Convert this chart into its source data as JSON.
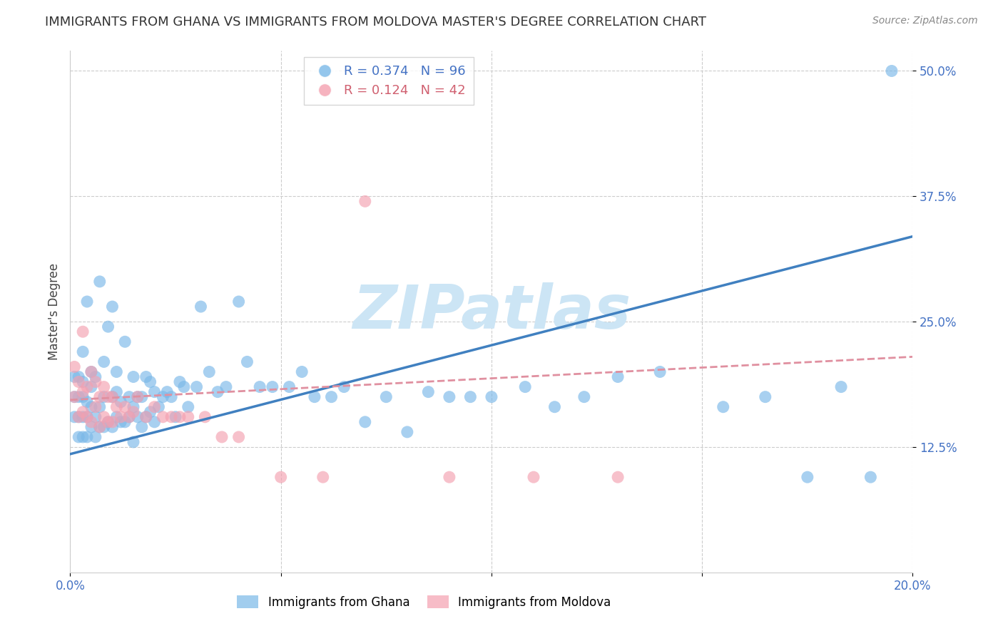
{
  "title": "IMMIGRANTS FROM GHANA VS IMMIGRANTS FROM MOLDOVA MASTER'S DEGREE CORRELATION CHART",
  "source": "Source: ZipAtlas.com",
  "ylabel": "Master's Degree",
  "legend_label_1": "Immigrants from Ghana",
  "legend_label_2": "Immigrants from Moldova",
  "R1": 0.374,
  "N1": 96,
  "R2": 0.124,
  "N2": 42,
  "color1": "#7ab8e8",
  "color2": "#f4a0b0",
  "trendline1_color": "#4080c0",
  "trendline2_color": "#e090a0",
  "xlim": [
    0.0,
    0.2
  ],
  "ylim": [
    0.0,
    0.52
  ],
  "yticks": [
    0.125,
    0.25,
    0.375,
    0.5
  ],
  "yticklabels": [
    "12.5%",
    "25.0%",
    "37.5%",
    "50.0%"
  ],
  "ghana_x": [
    0.001,
    0.001,
    0.001,
    0.002,
    0.002,
    0.002,
    0.002,
    0.003,
    0.003,
    0.003,
    0.003,
    0.003,
    0.004,
    0.004,
    0.004,
    0.004,
    0.005,
    0.005,
    0.005,
    0.005,
    0.006,
    0.006,
    0.006,
    0.007,
    0.007,
    0.007,
    0.008,
    0.008,
    0.008,
    0.009,
    0.009,
    0.01,
    0.01,
    0.01,
    0.011,
    0.011,
    0.011,
    0.012,
    0.012,
    0.013,
    0.013,
    0.014,
    0.014,
    0.015,
    0.015,
    0.015,
    0.016,
    0.016,
    0.017,
    0.017,
    0.018,
    0.018,
    0.019,
    0.019,
    0.02,
    0.02,
    0.021,
    0.022,
    0.023,
    0.024,
    0.025,
    0.026,
    0.027,
    0.028,
    0.03,
    0.031,
    0.033,
    0.035,
    0.037,
    0.04,
    0.042,
    0.045,
    0.048,
    0.052,
    0.055,
    0.058,
    0.062,
    0.065,
    0.07,
    0.075,
    0.08,
    0.085,
    0.09,
    0.095,
    0.1,
    0.108,
    0.115,
    0.122,
    0.13,
    0.14,
    0.155,
    0.165,
    0.175,
    0.183,
    0.19,
    0.195
  ],
  "ghana_y": [
    0.155,
    0.175,
    0.195,
    0.135,
    0.155,
    0.175,
    0.195,
    0.135,
    0.155,
    0.175,
    0.19,
    0.22,
    0.135,
    0.155,
    0.17,
    0.27,
    0.145,
    0.165,
    0.185,
    0.2,
    0.135,
    0.155,
    0.195,
    0.145,
    0.165,
    0.29,
    0.145,
    0.175,
    0.21,
    0.15,
    0.245,
    0.145,
    0.175,
    0.265,
    0.155,
    0.18,
    0.2,
    0.15,
    0.17,
    0.15,
    0.23,
    0.155,
    0.175,
    0.13,
    0.165,
    0.195,
    0.155,
    0.175,
    0.145,
    0.175,
    0.155,
    0.195,
    0.16,
    0.19,
    0.15,
    0.18,
    0.165,
    0.175,
    0.18,
    0.175,
    0.155,
    0.19,
    0.185,
    0.165,
    0.185,
    0.265,
    0.2,
    0.18,
    0.185,
    0.27,
    0.21,
    0.185,
    0.185,
    0.185,
    0.2,
    0.175,
    0.175,
    0.185,
    0.15,
    0.175,
    0.14,
    0.18,
    0.175,
    0.175,
    0.175,
    0.185,
    0.165,
    0.175,
    0.195,
    0.2,
    0.165,
    0.175,
    0.095,
    0.185,
    0.095,
    0.5
  ],
  "moldova_x": [
    0.001,
    0.001,
    0.002,
    0.002,
    0.003,
    0.003,
    0.003,
    0.004,
    0.004,
    0.005,
    0.005,
    0.006,
    0.006,
    0.007,
    0.007,
    0.008,
    0.008,
    0.009,
    0.009,
    0.01,
    0.01,
    0.011,
    0.012,
    0.013,
    0.014,
    0.015,
    0.016,
    0.018,
    0.02,
    0.022,
    0.024,
    0.026,
    0.028,
    0.032,
    0.036,
    0.04,
    0.05,
    0.06,
    0.07,
    0.09,
    0.11,
    0.13
  ],
  "moldova_y": [
    0.175,
    0.205,
    0.155,
    0.19,
    0.16,
    0.18,
    0.24,
    0.155,
    0.185,
    0.15,
    0.2,
    0.165,
    0.19,
    0.145,
    0.175,
    0.155,
    0.185,
    0.15,
    0.175,
    0.15,
    0.175,
    0.165,
    0.155,
    0.165,
    0.155,
    0.16,
    0.175,
    0.155,
    0.165,
    0.155,
    0.155,
    0.155,
    0.155,
    0.155,
    0.135,
    0.135,
    0.095,
    0.095,
    0.37,
    0.095,
    0.095,
    0.095
  ],
  "trendline1_x0": 0.0,
  "trendline1_y0": 0.118,
  "trendline1_x1": 0.2,
  "trendline1_y1": 0.335,
  "trendline2_x0": 0.0,
  "trendline2_y0": 0.172,
  "trendline2_x1": 0.2,
  "trendline2_y1": 0.215,
  "background_color": "#ffffff",
  "grid_color": "#cccccc",
  "watermark_text": "ZIPatlas",
  "watermark_color": "#cce5f5",
  "title_fontsize": 13,
  "axis_label_fontsize": 12,
  "tick_fontsize": 12,
  "legend_fontsize": 13
}
